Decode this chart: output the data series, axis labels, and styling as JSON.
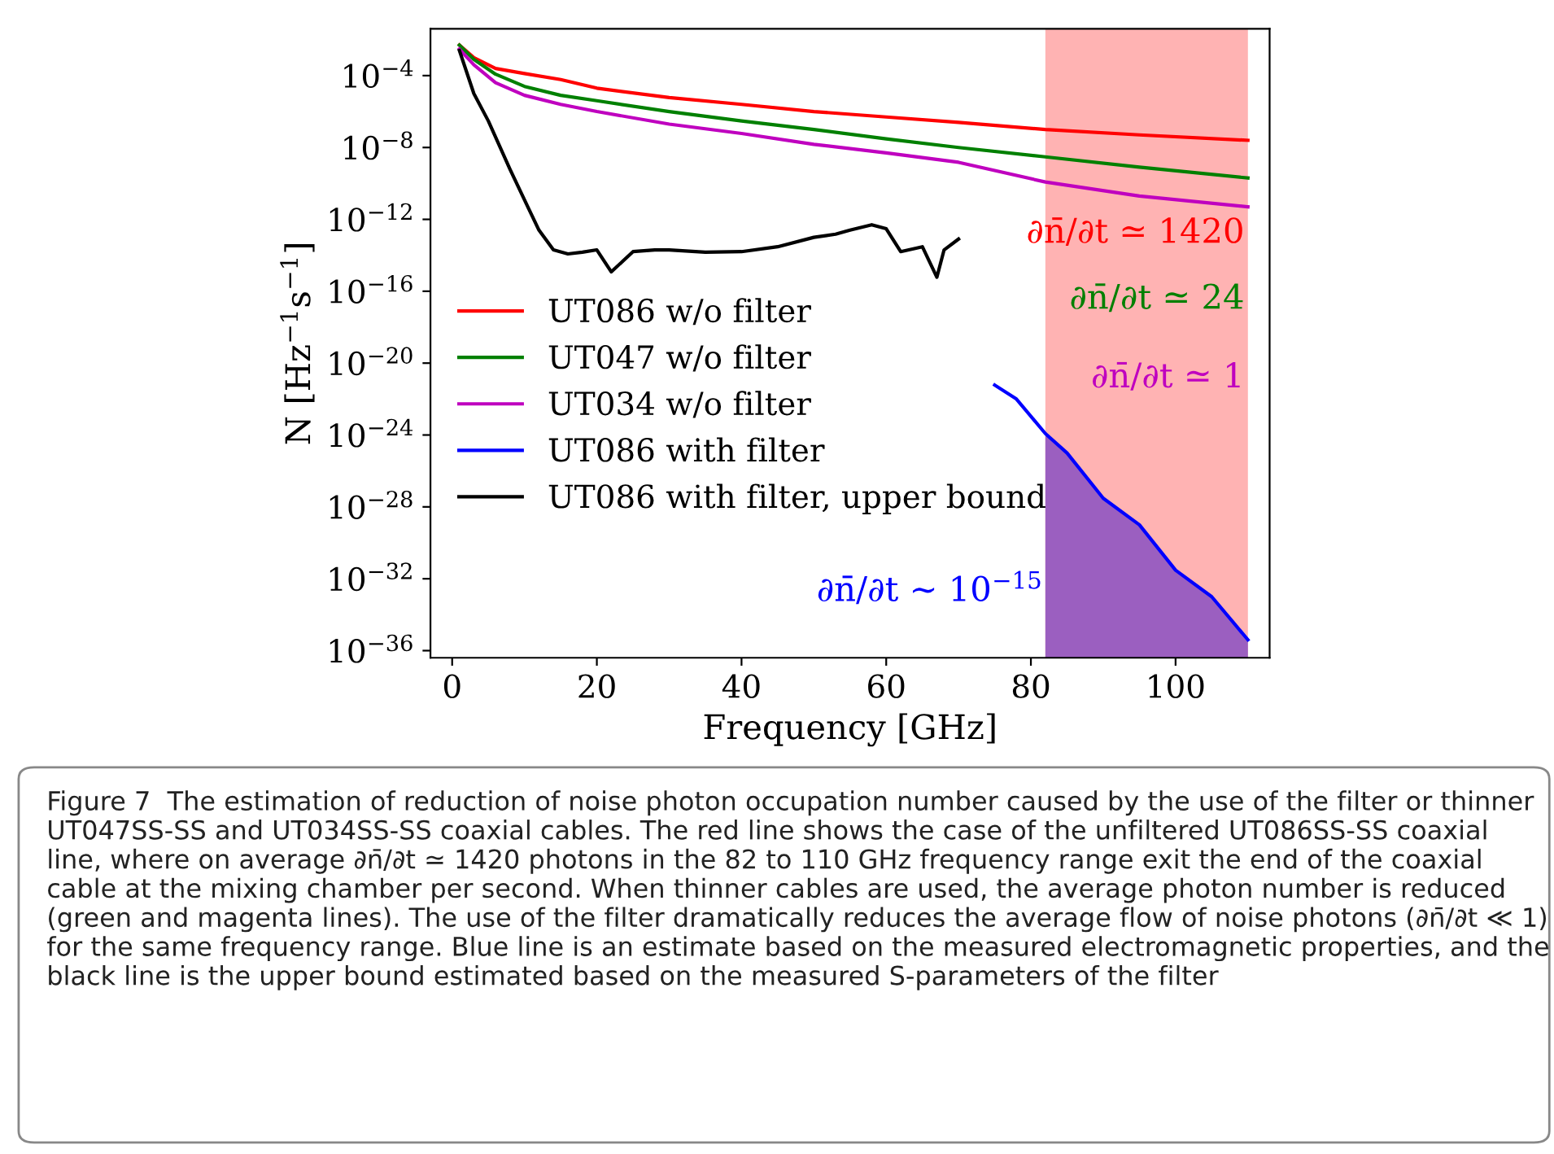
{
  "chart_data": {
    "type": "line",
    "xlabel": "Frequency [GHz]",
    "ylabel": "N [Hz$^{−1}$s$^{−1}$]",
    "log": "y",
    "xlim": [
      -3,
      113
    ],
    "xticks": [
      0,
      20,
      40,
      60,
      80,
      100
    ],
    "ylim": [
      4e-37,
      0.04
    ],
    "yticks": [
      {
        "value": 0.0001,
        "label": "10$^{−4}$"
      },
      {
        "value": 1e-08,
        "label": "10$^{−8}$"
      },
      {
        "value": 1e-12,
        "label": "10$^{−12}$"
      },
      {
        "value": 1e-16,
        "label": "10$^{−16}$"
      },
      {
        "value": 1e-20,
        "label": "10$^{−20}$"
      },
      {
        "value": 1e-24,
        "label": "10$^{−24}$"
      },
      {
        "value": 1e-28,
        "label": "10$^{−28}$"
      },
      {
        "value": 1e-32,
        "label": "10$^{−32}$"
      },
      {
        "value": 1e-36,
        "label": "10$^{−36}$"
      }
    ],
    "grid": false,
    "legend": "left",
    "bands": [
      {
        "axis": "x",
        "from": 82,
        "to": 110,
        "label": null,
        "color": "#ffb3b3"
      }
    ],
    "series": [
      {
        "name": "UT086 w/o filter",
        "color": "#ff0000",
        "x": [
          1,
          3,
          6,
          10,
          15,
          20,
          30,
          40,
          50,
          60,
          70,
          82,
          95,
          110
        ],
        "values": [
          0.005,
          0.001,
          0.00025,
          0.00013,
          6e-05,
          2e-05,
          6e-06,
          2.5e-06,
          1e-06,
          5e-07,
          2.5e-07,
          1e-07,
          5e-08,
          2.5e-08
        ]
      },
      {
        "name": "UT047 w/o filter",
        "color": "#008000",
        "x": [
          1,
          3,
          6,
          10,
          15,
          20,
          30,
          40,
          50,
          60,
          70,
          82,
          95,
          110
        ],
        "values": [
          0.005,
          0.0008,
          0.00012,
          2.5e-05,
          8e-06,
          4e-06,
          1e-06,
          3e-07,
          1e-07,
          3e-08,
          1e-08,
          3e-09,
          8e-10,
          2e-10
        ]
      },
      {
        "name": "UT034 w/o filter",
        "color": "#bf00bf",
        "x": [
          1,
          3,
          6,
          10,
          15,
          20,
          30,
          40,
          50,
          60,
          70,
          82,
          95,
          110
        ],
        "values": [
          0.003,
          0.0004,
          4e-05,
          8e-06,
          2.5e-06,
          1e-06,
          2e-07,
          6e-08,
          1.5e-08,
          5e-09,
          1.5e-09,
          1.2e-10,
          2e-11,
          5e-12
        ]
      },
      {
        "name": "UT086 with filter",
        "color": "#0000ff",
        "x": [
          75,
          78,
          82,
          85,
          90,
          95,
          100,
          105,
          110
        ],
        "values": [
          6e-22,
          1e-22,
          1.2e-24,
          1e-25,
          3e-28,
          1e-29,
          3e-32,
          1e-33,
          4e-36
        ]
      },
      {
        "name": "UT086 with filter, upper bound",
        "color": "#000000",
        "x": [
          1,
          3,
          5,
          8,
          10,
          12,
          14,
          16,
          18,
          20,
          22,
          25,
          28,
          30,
          35,
          40,
          45,
          50,
          53,
          55,
          58,
          60,
          62,
          65,
          67,
          68,
          70
        ],
        "values": [
          0.0025,
          1e-05,
          3e-07,
          6e-10,
          1.2e-11,
          2.5e-13,
          2e-14,
          1.2e-14,
          1.5e-14,
          2e-14,
          1.2e-15,
          1.6e-14,
          2e-14,
          2e-14,
          1.5e-14,
          1.6e-14,
          3e-14,
          1e-13,
          1.5e-13,
          2.5e-13,
          5e-13,
          3e-13,
          1.6e-14,
          3e-14,
          6e-16,
          2e-14,
          8e-14
        ]
      },
      {
        "type": "area",
        "color": "#9b5fc0",
        "x": [
          82,
          85,
          90,
          95,
          100,
          105,
          110
        ],
        "values": [
          1.2e-24,
          1e-25,
          3e-28,
          1e-29,
          3e-32,
          1e-33,
          4e-36
        ]
      }
    ],
    "annotations": [
      "∂n̄/∂t ≃ 1420",
      "∂n̄/∂t ≃ 24",
      "∂n̄/∂t ≃ 1",
      "∂n̄/∂t ∼ 10$^{−15}$",
      "Figure 7  The estimation of reduction of noise photon occupation number caused by the use of the filter or thinner UT047SS-SS and UT034SS-SS coaxial cables. The red line shows the case of the unfiltered UT086SS-SS coaxial line, where on average ∂n̄/∂t ≃ 1420 photons in the 82 to 110 GHz frequency range exit the end of the coaxial cable at the mixing chamber per second. When thinner cables are used, the average photon number is reduced (green and magenta lines). The use of the filter dramatically reduces the average flow of noise photons (∂n̄/∂t ≪ 1) for the same frequency range. Blue line is an estimate based on the measured electromagnetic properties, and the black line is the upper bound estimated based on the measured S-parameters of the filter"
    ]
  }
}
